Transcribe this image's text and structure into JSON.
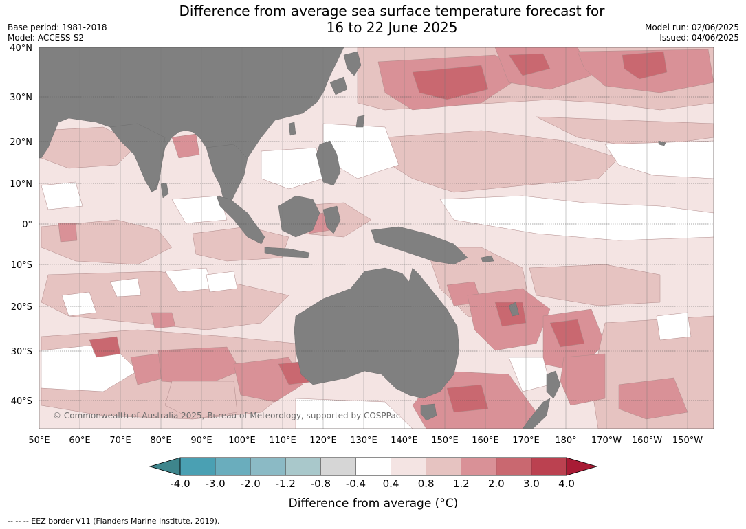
{
  "header": {
    "title_line1": "Difference from average sea surface temperature forecast for",
    "title_line2": "16 to 22 June 2025",
    "base_period": "Base period: 1981-2018",
    "model": "Model: ACCESS-S2",
    "model_run": "Model run: 02/06/2025",
    "issued": "Issued: 04/06/2025"
  },
  "map": {
    "lat_labels": [
      "40°N",
      "30°N",
      "20°N",
      "10°N",
      "0°",
      "10°S",
      "20°S",
      "30°S",
      "40°S"
    ],
    "lon_labels": [
      "50°E",
      "60°E",
      "70°E",
      "80°E",
      "90°E",
      "100°E",
      "110°E",
      "120°E",
      "130°E",
      "140°E",
      "150°E",
      "160°E",
      "170°E",
      "180°",
      "170°W",
      "160°W",
      "150°W"
    ],
    "copyright": "© Commonwealth of Australia 2025, Bureau of Meteorology, supported by COSPPac",
    "land_color": "#808080"
  },
  "colorbar": {
    "title": "Difference from average (°C)",
    "levels": [
      "-4.0",
      "-3.0",
      "-2.0",
      "-1.2",
      "-0.8",
      "-0.4",
      "0.4",
      "0.8",
      "1.2",
      "2.0",
      "3.0",
      "4.0"
    ],
    "colors": [
      "#4aa0b3",
      "#6aadbd",
      "#8bbac5",
      "#a9c8cb",
      "#d6d6d6",
      "#ffffff",
      "#f4e4e3",
      "#e6c3c1",
      "#d99197",
      "#c96870",
      "#bb4150"
    ],
    "low_extend_color": "#3e858c",
    "high_extend_color": "#a81b35"
  },
  "footnote": "-- -- -- EEZ border V11 (Flanders Marine Institute, 2019)."
}
